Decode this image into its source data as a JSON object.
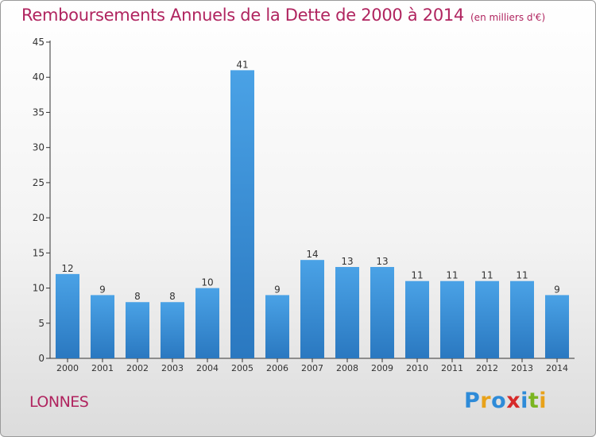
{
  "title": "Remboursements Annuels de la Dette de 2000 à 2014",
  "unit_note": "(en milliers d'€)",
  "place": "LONNES",
  "logo": {
    "letters": [
      "P",
      "r",
      "o",
      "x",
      "i",
      "t",
      "i"
    ],
    "colors": [
      "#2e8bd8",
      "#e8a21a",
      "#2e8bd8",
      "#d62a2a",
      "#2e8bd8",
      "#7ab520",
      "#e8a21a"
    ]
  },
  "colors": {
    "bar": "#3d94db",
    "bar_dark": "#2a78c0",
    "title": "#b0245f",
    "axis": "#333333"
  },
  "chart_data": {
    "type": "bar",
    "title": "Remboursements Annuels de la Dette de 2000 à 2014",
    "xlabel": "",
    "ylabel": "",
    "categories": [
      "2000",
      "2001",
      "2002",
      "2003",
      "2004",
      "2005",
      "2006",
      "2007",
      "2008",
      "2009",
      "2010",
      "2011",
      "2012",
      "2013",
      "2014"
    ],
    "values": [
      12,
      9,
      8,
      8,
      10,
      41,
      9,
      14,
      13,
      13,
      11,
      11,
      11,
      11,
      9
    ],
    "ylim": [
      0,
      45
    ],
    "yticks": [
      0,
      5,
      10,
      15,
      20,
      25,
      30,
      35,
      40,
      45
    ],
    "grid": false,
    "data_labels": true
  }
}
